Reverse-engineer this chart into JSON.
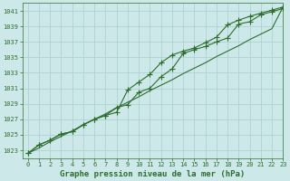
{
  "title": "Graphe pression niveau de la mer (hPa)",
  "bg_color": "#cce8e8",
  "line_color": "#2d6e2d",
  "grid_color": "#aacece",
  "x_values": [
    0,
    1,
    2,
    3,
    4,
    5,
    6,
    7,
    8,
    9,
    10,
    11,
    12,
    13,
    14,
    15,
    16,
    17,
    18,
    19,
    20,
    21,
    22,
    23
  ],
  "y1_values": [
    1022.6,
    1023.7,
    1024.3,
    1025.1,
    1025.4,
    1026.3,
    1027.0,
    1027.5,
    1027.9,
    1030.8,
    1031.8,
    1032.8,
    1034.3,
    1035.3,
    1035.8,
    1036.2,
    1036.9,
    1037.6,
    1039.2,
    1039.8,
    1040.3,
    1040.7,
    1041.1,
    1041.5
  ],
  "y2_values": [
    1022.6,
    1023.7,
    1024.3,
    1025.1,
    1025.4,
    1026.3,
    1027.0,
    1027.5,
    1028.5,
    1028.9,
    1030.5,
    1031.0,
    1032.5,
    1033.5,
    1035.5,
    1036.0,
    1036.4,
    1037.0,
    1037.5,
    1039.3,
    1039.6,
    1040.5,
    1040.9,
    1041.3
  ],
  "y_straight": [
    1022.6,
    1023.3,
    1024.1,
    1024.8,
    1025.5,
    1026.3,
    1027.0,
    1027.7,
    1028.5,
    1029.2,
    1029.9,
    1030.7,
    1031.4,
    1032.1,
    1032.9,
    1033.6,
    1034.3,
    1035.1,
    1035.8,
    1036.5,
    1037.3,
    1038.0,
    1038.7,
    1041.5
  ],
  "ylim": [
    1022,
    1042
  ],
  "xlim": [
    -0.5,
    23
  ],
  "yticks": [
    1023,
    1025,
    1027,
    1029,
    1031,
    1033,
    1035,
    1037,
    1039,
    1041
  ],
  "xticks": [
    0,
    1,
    2,
    3,
    4,
    5,
    6,
    7,
    8,
    9,
    10,
    11,
    12,
    13,
    14,
    15,
    16,
    17,
    18,
    19,
    20,
    21,
    22,
    23
  ],
  "title_fontsize": 6.5,
  "tick_fontsize": 5.0,
  "linewidth": 0.8,
  "markersize": 2.2,
  "figsize": [
    3.2,
    2.0
  ],
  "dpi": 100
}
